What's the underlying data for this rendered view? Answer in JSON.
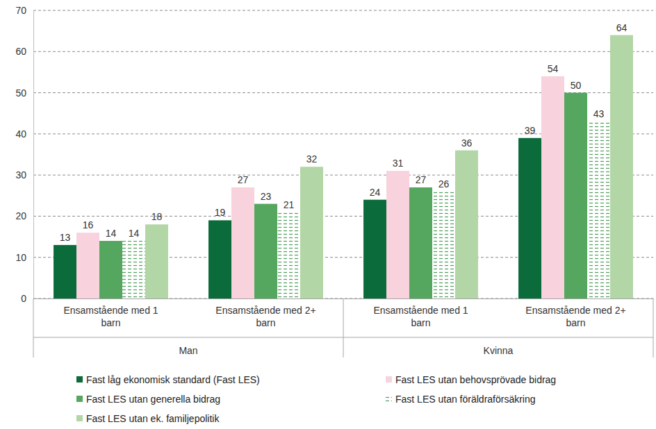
{
  "chart_data": {
    "type": "bar",
    "categories": [
      "Ensamstående med 1 barn",
      "Ensamstående med 2+ barn",
      "Ensamstående med 1 barn",
      "Ensamstående med 2+ barn"
    ],
    "category_groups": [
      "Man",
      "Kvinna"
    ],
    "series": [
      {
        "name": "Fast låg ekonomisk standard (Fast LES)",
        "color": "#0b6b3a",
        "values": [
          13,
          19,
          24,
          39
        ]
      },
      {
        "name": "Fast LES utan behovsprövade bidrag",
        "color": "#f8d3de",
        "values": [
          16,
          27,
          31,
          54
        ]
      },
      {
        "name": "Fast LES utan generella bidrag",
        "color": "#55a65f",
        "values": [
          14,
          23,
          27,
          50
        ]
      },
      {
        "name": "Fast LES utan föräldraförsäkring",
        "color": "#4c9e5a",
        "line_style": "dashed",
        "values": [
          14,
          21,
          26,
          43
        ]
      },
      {
        "name": "Fast LES utan ek. familjepolitik",
        "color": "#b2d6a6",
        "values": [
          18,
          32,
          36,
          64
        ]
      }
    ],
    "ylim": [
      0,
      70
    ],
    "yticks": [
      0,
      10,
      20,
      30,
      40,
      50,
      60,
      70
    ],
    "grid": true,
    "data_labels": true,
    "legend": "bottom"
  }
}
